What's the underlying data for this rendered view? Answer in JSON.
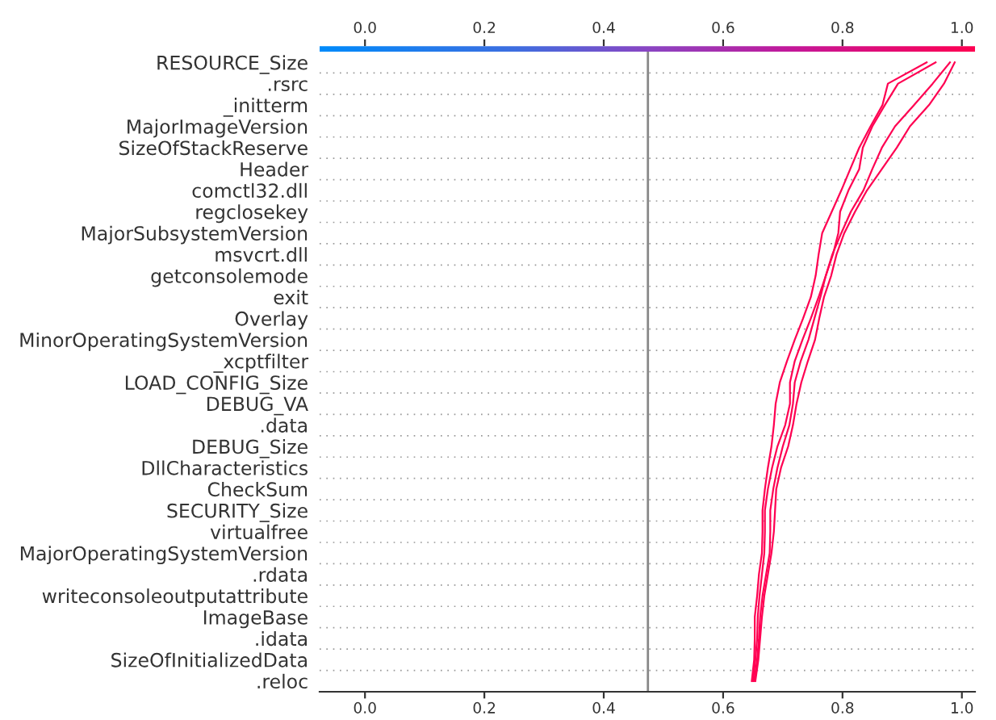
{
  "chart_data": {
    "type": "line",
    "orientation": "horizontal",
    "categories": [
      "RESOURCE_Size",
      ".rsrc",
      "_initterm",
      "MajorImageVersion",
      "SizeOfStackReserve",
      "Header",
      "comctl32.dll",
      "regclosekey",
      "MajorSubsystemVersion",
      "msvcrt.dll",
      "getconsolemode",
      "exit",
      "Overlay",
      "MinorOperatingSystemVersion",
      "_xcptfilter",
      "LOAD_CONFIG_Size",
      "DEBUG_VA",
      ".data",
      "DEBUG_Size",
      "DllCharacteristics",
      "CheckSum",
      "SECURITY_Size",
      "virtualfree",
      "MajorOperatingSystemVersion",
      ".rdata",
      "writeconsoleoutputattribute",
      "ImageBase",
      ".idata",
      "SizeOfInitializedData",
      ".reloc"
    ],
    "series": [
      {
        "color": "#ff0052",
        "values": [
          0.941,
          0.876,
          0.867,
          0.847,
          0.828,
          0.813,
          0.798,
          0.782,
          0.766,
          0.76,
          0.755,
          0.747,
          0.734,
          0.72,
          0.707,
          0.695,
          0.688,
          0.685,
          0.681,
          0.675,
          0.67,
          0.666,
          0.666,
          0.665,
          0.66,
          0.657,
          0.653,
          0.653,
          0.652,
          0.648
        ]
      },
      {
        "color": "#ff0052",
        "values": [
          0.956,
          0.893,
          0.871,
          0.85,
          0.834,
          0.828,
          0.81,
          0.796,
          0.793,
          0.784,
          0.772,
          0.76,
          0.747,
          0.733,
          0.72,
          0.712,
          0.712,
          0.704,
          0.691,
          0.682,
          0.675,
          0.67,
          0.67,
          0.669,
          0.665,
          0.661,
          0.658,
          0.657,
          0.654,
          0.65
        ]
      },
      {
        "color": "#ff0052",
        "values": [
          0.98,
          0.951,
          0.92,
          0.888,
          0.866,
          0.85,
          0.835,
          0.814,
          0.798,
          0.783,
          0.772,
          0.763,
          0.753,
          0.743,
          0.73,
          0.72,
          0.717,
          0.711,
          0.7,
          0.691,
          0.684,
          0.679,
          0.679,
          0.678,
          0.672,
          0.666,
          0.662,
          0.66,
          0.657,
          0.652
        ]
      },
      {
        "color": "#ff0052",
        "values": [
          0.988,
          0.97,
          0.945,
          0.913,
          0.891,
          0.866,
          0.841,
          0.821,
          0.803,
          0.79,
          0.781,
          0.769,
          0.761,
          0.754,
          0.742,
          0.731,
          0.723,
          0.717,
          0.709,
          0.697,
          0.689,
          0.687,
          0.685,
          0.681,
          0.675,
          0.669,
          0.665,
          0.662,
          0.659,
          0.654
        ]
      }
    ],
    "xlim": [
      -0.076,
      1.022
    ],
    "xticks": [
      {
        "value": 0,
        "label": "0.0"
      },
      {
        "value": 0.2,
        "label": "0.2"
      },
      {
        "value": 0.4,
        "label": "0.4"
      },
      {
        "value": 0.6,
        "label": "0.6"
      },
      {
        "value": 0.8,
        "label": "0.8"
      },
      {
        "value": 1,
        "label": "1.0"
      }
    ],
    "x2lim": [
      -0.076,
      1.022
    ],
    "x2ticks": [
      {
        "value": 0,
        "label": "0.0"
      },
      {
        "value": 0.2,
        "label": "0.2"
      },
      {
        "value": 0.4,
        "label": "0.4"
      },
      {
        "value": 0.6,
        "label": "0.6"
      },
      {
        "value": 0.8,
        "label": "0.8"
      },
      {
        "value": 1,
        "label": "1.0"
      }
    ],
    "ref_lines": [
      {
        "axis": "x",
        "value": 0.474,
        "color": "#888888"
      }
    ],
    "grid": "y"
  }
}
